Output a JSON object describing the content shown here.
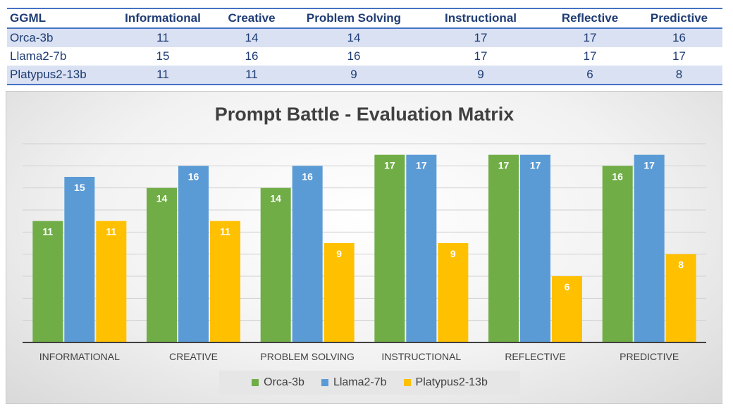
{
  "table": {
    "header": [
      "GGML",
      "Informational",
      "Creative",
      "Problem Solving",
      "Instructional",
      "Reflective",
      "Predictive"
    ],
    "rows": [
      [
        "Orca-3b",
        "11",
        "14",
        "14",
        "17",
        "17",
        "16"
      ],
      [
        "Llama2-7b",
        "15",
        "16",
        "16",
        "17",
        "17",
        "17"
      ],
      [
        "Platypus2-13b",
        "11",
        "11",
        "9",
        "9",
        "6",
        "8"
      ]
    ]
  },
  "chart_data": {
    "type": "bar",
    "title": "Prompt Battle - Evaluation Matrix",
    "categories": [
      "INFORMATIONAL",
      "CREATIVE",
      "PROBLEM SOLVING",
      "INSTRUCTIONAL",
      "REFLECTIVE",
      "PREDICTIVE"
    ],
    "series": [
      {
        "name": "Orca-3b",
        "values": [
          11,
          14,
          14,
          17,
          17,
          16
        ],
        "color": "#70ad47"
      },
      {
        "name": "Llama2-7b",
        "values": [
          15,
          16,
          16,
          17,
          17,
          17
        ],
        "color": "#5b9bd5"
      },
      {
        "name": "Platypus2-13b",
        "values": [
          11,
          11,
          9,
          9,
          6,
          8
        ],
        "color": "#ffc000"
      }
    ],
    "ylim": [
      0,
      18
    ],
    "grid": true,
    "data_labels": true,
    "legend_position": "bottom"
  }
}
